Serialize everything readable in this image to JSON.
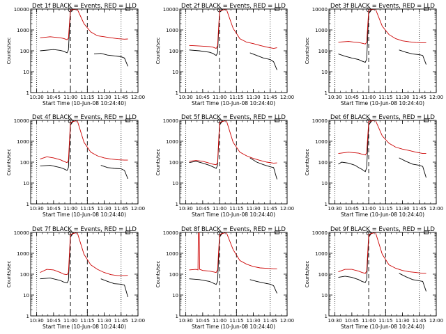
{
  "chart_data": [
    {
      "type": "line",
      "title": "Det 1f BLACK = Events, RED = LLD",
      "xlabel": "Start Time (10-Jun-08 10:24:40)",
      "ylabel": "Counts/sec",
      "xticks": [
        "10:30",
        "10:45",
        "11:00",
        "11:15",
        "11:30",
        "11:45",
        "12:00"
      ],
      "yticks": [
        "1",
        "10",
        "100",
        "1000",
        "10000"
      ],
      "ylim": [
        1,
        10000
      ],
      "yscale": "log",
      "series": [
        {
          "name": "Events",
          "color": "#000000",
          "x": [
            10.55,
            10.75,
            10.85,
            10.9,
            10.95,
            10.97,
            11.0,
            11.05,
            11.1,
            11.22,
            11.3,
            11.35,
            11.45,
            11.55,
            11.65,
            11.75,
            11.8,
            11.85
          ],
          "y": [
            100,
            115,
            105,
            95,
            80,
            110,
            8000,
            10000,
            10000,
            null,
            null,
            70,
            75,
            62,
            57,
            52,
            45,
            18
          ]
        },
        {
          "name": "LLD",
          "color": "#cc0000",
          "x": [
            10.55,
            10.7,
            10.85,
            10.9,
            10.95,
            10.97,
            11.0,
            11.1,
            11.2,
            11.3,
            11.4,
            11.5,
            11.6,
            11.7,
            11.8,
            11.85
          ],
          "y": [
            420,
            470,
            420,
            390,
            340,
            400,
            9000,
            10000,
            2000,
            800,
            520,
            470,
            420,
            380,
            360,
            370
          ]
        }
      ]
    },
    {
      "type": "line",
      "title": "Det 2f BLACK = Events, RED = LLD",
      "xlabel": "Start Time (10-Jun-08 10:24:40)",
      "ylabel": "Counts/sec",
      "xticks": [
        "10:30",
        "10:45",
        "11:00",
        "11:15",
        "11:30",
        "11:45",
        "12:00"
      ],
      "yticks": [
        "1",
        "10",
        "100",
        "1000",
        "10000"
      ],
      "ylim": [
        1,
        10000
      ],
      "yscale": "log",
      "series": [
        {
          "name": "Events",
          "color": "#000000",
          "x": [
            10.55,
            10.7,
            10.85,
            10.9,
            10.95,
            10.97,
            11.0,
            11.05,
            11.15,
            11.35,
            11.45,
            11.55,
            11.65,
            11.75,
            11.8,
            11.85
          ],
          "y": [
            110,
            100,
            85,
            75,
            60,
            80,
            7000,
            10000,
            10000,
            null,
            80,
            60,
            45,
            38,
            30,
            12
          ]
        },
        {
          "name": "LLD",
          "color": "#cc0000",
          "x": [
            10.55,
            10.7,
            10.85,
            10.9,
            10.95,
            10.97,
            11.0,
            11.1,
            11.2,
            11.3,
            11.4,
            11.5,
            11.6,
            11.7,
            11.8,
            11.85
          ],
          "y": [
            180,
            170,
            160,
            150,
            130,
            170,
            8000,
            10000,
            1200,
            380,
            260,
            220,
            180,
            150,
            130,
            140
          ]
        }
      ]
    },
    {
      "type": "line",
      "title": "Det 3f BLACK = Events, RED = LLD",
      "xlabel": "Start Time (10-Jun-08 10:24:40)",
      "ylabel": "Counts/sec",
      "xticks": [
        "10:30",
        "10:45",
        "11:00",
        "11:15",
        "11:30",
        "11:45",
        "12:00"
      ],
      "yticks": [
        "1",
        "10",
        "100",
        "1000",
        "10000"
      ],
      "ylim": [
        1,
        10000
      ],
      "yscale": "log",
      "series": [
        {
          "name": "Events",
          "color": "#000000",
          "x": [
            10.55,
            10.65,
            10.75,
            10.85,
            10.9,
            10.95,
            10.97,
            11.0,
            11.05,
            11.15,
            11.35,
            11.45,
            11.55,
            11.65,
            11.75,
            11.8,
            11.85
          ],
          "y": [
            70,
            55,
            45,
            38,
            32,
            28,
            40,
            6000,
            10000,
            10000,
            null,
            110,
            85,
            70,
            65,
            60,
            22
          ]
        },
        {
          "name": "LLD",
          "color": "#cc0000",
          "x": [
            10.55,
            10.7,
            10.85,
            10.9,
            10.95,
            10.97,
            11.0,
            11.1,
            11.2,
            11.3,
            11.4,
            11.5,
            11.6,
            11.7,
            11.8,
            11.85
          ],
          "y": [
            260,
            280,
            250,
            230,
            210,
            260,
            9000,
            10000,
            1500,
            600,
            380,
            300,
            270,
            250,
            240,
            240
          ]
        }
      ]
    },
    {
      "type": "line",
      "title": "Det 4f BLACK = Events, RED = LLD",
      "xlabel": "Start Time (10-Jun-08 10:24:40)",
      "ylabel": "Counts/sec",
      "xticks": [
        "10:30",
        "10:45",
        "11:00",
        "11:15",
        "11:30",
        "11:45",
        "12:00"
      ],
      "yticks": [
        "1",
        "10",
        "100",
        "1000",
        "10000"
      ],
      "ylim": [
        1,
        10000
      ],
      "yscale": "log",
      "series": [
        {
          "name": "Events",
          "color": "#000000",
          "x": [
            10.55,
            10.7,
            10.85,
            10.9,
            10.95,
            10.97,
            11.0,
            11.05,
            11.15,
            11.35,
            11.45,
            11.55,
            11.65,
            11.75,
            11.8,
            11.85
          ],
          "y": [
            65,
            70,
            55,
            48,
            40,
            55,
            6000,
            10000,
            10000,
            null,
            70,
            55,
            50,
            48,
            40,
            16
          ]
        },
        {
          "name": "LLD",
          "color": "#cc0000",
          "x": [
            10.55,
            10.65,
            10.75,
            10.85,
            10.9,
            10.95,
            10.97,
            11.0,
            11.1,
            11.2,
            11.3,
            11.4,
            11.5,
            11.6,
            11.7,
            11.8,
            11.85
          ],
          "y": [
            140,
            180,
            160,
            130,
            110,
            95,
            120,
            8000,
            10000,
            900,
            300,
            200,
            160,
            140,
            130,
            125,
            125
          ]
        }
      ]
    },
    {
      "type": "line",
      "title": "Det 5f BLACK = Events, RED = LLD",
      "xlabel": "Start Time (10-Jun-08 10:24:40)",
      "ylabel": "Counts/sec",
      "xticks": [
        "10:30",
        "10:45",
        "11:00",
        "11:15",
        "11:30",
        "11:45",
        "12:00"
      ],
      "yticks": [
        "1",
        "10",
        "100",
        "1000",
        "10000"
      ],
      "ylim": [
        1,
        10000
      ],
      "yscale": "log",
      "series": [
        {
          "name": "Events",
          "color": "#000000",
          "x": [
            10.55,
            10.65,
            10.75,
            10.85,
            10.9,
            10.95,
            10.97,
            11.0,
            11.05,
            11.15,
            11.35,
            11.45,
            11.55,
            11.65,
            11.75,
            11.8,
            11.85
          ],
          "y": [
            95,
            110,
            90,
            70,
            60,
            50,
            70,
            6000,
            10000,
            10000,
            null,
            160,
            100,
            75,
            60,
            55,
            15
          ]
        },
        {
          "name": "LLD",
          "color": "#cc0000",
          "x": [
            10.55,
            10.65,
            10.75,
            10.85,
            10.9,
            10.95,
            10.97,
            11.0,
            11.1,
            11.2,
            11.3,
            11.4,
            11.5,
            11.6,
            11.7,
            11.8,
            11.85
          ],
          "y": [
            110,
            120,
            110,
            90,
            80,
            75,
            95,
            8000,
            10000,
            900,
            300,
            200,
            150,
            120,
            100,
            90,
            92
          ]
        }
      ]
    },
    {
      "type": "line",
      "title": "Det 6f BLACK = Events, RED = LLD",
      "xlabel": "Start Time (10-Jun-08 10:24:40)",
      "ylabel": "Counts/sec",
      "xticks": [
        "10:30",
        "10:45",
        "11:00",
        "11:15",
        "11:30",
        "11:45",
        "12:00"
      ],
      "yticks": [
        "1",
        "10",
        "100",
        "1000",
        "10000"
      ],
      "ylim": [
        1,
        10000
      ],
      "yscale": "log",
      "series": [
        {
          "name": "Events",
          "color": "#000000",
          "x": [
            10.55,
            10.6,
            10.7,
            10.8,
            10.85,
            10.9,
            10.95,
            10.97,
            11.0,
            11.05,
            11.15,
            11.35,
            11.45,
            11.55,
            11.65,
            11.75,
            11.8,
            11.85
          ],
          "y": [
            80,
            100,
            90,
            70,
            55,
            45,
            35,
            55,
            6000,
            10000,
            10000,
            null,
            160,
            110,
            80,
            70,
            62,
            18
          ]
        },
        {
          "name": "LLD",
          "color": "#cc0000",
          "x": [
            10.55,
            10.7,
            10.85,
            10.9,
            10.95,
            10.97,
            11.0,
            11.1,
            11.2,
            11.3,
            11.4,
            11.5,
            11.6,
            11.7,
            11.8,
            11.85
          ],
          "y": [
            260,
            300,
            270,
            240,
            220,
            280,
            9000,
            10000,
            1800,
            800,
            520,
            420,
            360,
            300,
            260,
            260
          ]
        }
      ]
    },
    {
      "type": "line",
      "title": "Det 7f BLACK = Events, RED = LLD",
      "xlabel": "Start Time (10-Jun-08 10:24:40)",
      "ylabel": "Counts/sec",
      "xticks": [
        "10:30",
        "10:45",
        "11:00",
        "11:15",
        "11:30",
        "11:45",
        "12:00"
      ],
      "yticks": [
        "1",
        "10",
        "100",
        "1000",
        "10000"
      ],
      "ylim": [
        1,
        10000
      ],
      "yscale": "log",
      "series": [
        {
          "name": "Events",
          "color": "#000000",
          "x": [
            10.55,
            10.7,
            10.85,
            10.9,
            10.95,
            10.97,
            11.0,
            11.05,
            11.15,
            11.35,
            11.45,
            11.55,
            11.65,
            11.75,
            11.8,
            11.85
          ],
          "y": [
            60,
            65,
            50,
            42,
            38,
            50,
            6000,
            10000,
            10000,
            null,
            60,
            45,
            35,
            33,
            30,
            8
          ]
        },
        {
          "name": "LLD",
          "color": "#cc0000",
          "x": [
            10.55,
            10.65,
            10.75,
            10.85,
            10.9,
            10.95,
            10.97,
            11.0,
            11.1,
            11.2,
            11.3,
            11.4,
            11.5,
            11.6,
            11.7,
            11.8,
            11.85
          ],
          "y": [
            120,
            170,
            160,
            120,
            100,
            95,
            120,
            8000,
            10000,
            900,
            280,
            170,
            120,
            95,
            85,
            85,
            88
          ]
        }
      ]
    },
    {
      "type": "line",
      "title": "Det 8f BLACK = Events, RED = LLD",
      "xlabel": "Start Time (10-Jun-08 10:24:40)",
      "ylabel": "Counts/sec",
      "xticks": [
        "10:30",
        "10:45",
        "11:00",
        "11:15",
        "11:30",
        "11:45",
        "12:00"
      ],
      "yticks": [
        "1",
        "10",
        "100",
        "1000",
        "10000"
      ],
      "ylim": [
        1,
        10000
      ],
      "yscale": "log",
      "series": [
        {
          "name": "Events",
          "color": "#000000",
          "x": [
            10.55,
            10.7,
            10.85,
            10.9,
            10.95,
            10.97,
            11.0,
            11.05,
            11.15,
            11.35,
            11.45,
            11.55,
            11.65,
            11.75,
            11.8,
            11.85
          ],
          "y": [
            60,
            55,
            45,
            38,
            32,
            45,
            6000,
            10000,
            10000,
            null,
            55,
            45,
            38,
            33,
            28,
            12
          ]
        },
        {
          "name": "LLD",
          "color": "#cc0000",
          "x": [
            10.55,
            10.65,
            10.68,
            10.685,
            10.7,
            10.705,
            10.75,
            10.85,
            10.9,
            10.95,
            10.97,
            11.0,
            11.1,
            11.2,
            11.3,
            11.4,
            11.5,
            11.6,
            11.7,
            11.8,
            11.85
          ],
          "y": [
            160,
            170,
            160,
            10000,
            10000,
            170,
            150,
            140,
            130,
            120,
            160,
            8000,
            10000,
            1500,
            450,
            300,
            230,
            200,
            190,
            180,
            180
          ]
        }
      ]
    },
    {
      "type": "line",
      "title": "Det 9f BLACK = Events, RED = LLD",
      "xlabel": "Start Time (10-Jun-08 10:24:40)",
      "ylabel": "Counts/sec",
      "xticks": [
        "10:30",
        "10:45",
        "11:00",
        "11:15",
        "11:30",
        "11:45",
        "12:00"
      ],
      "yticks": [
        "1",
        "10",
        "100",
        "1000",
        "10000"
      ],
      "ylim": [
        1,
        10000
      ],
      "yscale": "log",
      "series": [
        {
          "name": "Events",
          "color": "#000000",
          "x": [
            10.55,
            10.65,
            10.75,
            10.85,
            10.9,
            10.95,
            10.97,
            11.0,
            11.05,
            11.15,
            11.35,
            11.45,
            11.55,
            11.65,
            11.75,
            11.8,
            11.85
          ],
          "y": [
            70,
            80,
            70,
            55,
            45,
            40,
            55,
            6000,
            10000,
            10000,
            null,
            110,
            75,
            55,
            48,
            45,
            15
          ]
        },
        {
          "name": "LLD",
          "color": "#cc0000",
          "x": [
            10.55,
            10.65,
            10.75,
            10.85,
            10.9,
            10.95,
            10.97,
            11.0,
            11.1,
            11.2,
            11.3,
            11.4,
            11.5,
            11.6,
            11.7,
            11.8,
            11.85
          ],
          "y": [
            130,
            170,
            170,
            140,
            120,
            110,
            140,
            8000,
            10000,
            900,
            280,
            190,
            150,
            130,
            120,
            110,
            110
          ]
        }
      ]
    }
  ]
}
